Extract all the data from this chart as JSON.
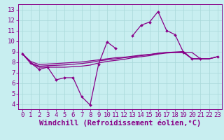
{
  "title": "",
  "xlabel": "Windchill (Refroidissement éolien,°C)",
  "ylabel": "",
  "background_color": "#c8eef0",
  "line_color": "#880088",
  "x": [
    0,
    1,
    2,
    3,
    4,
    5,
    6,
    7,
    8,
    9,
    10,
    11,
    12,
    13,
    14,
    15,
    16,
    17,
    18,
    19,
    20,
    21,
    22,
    23
  ],
  "line1": [
    8.8,
    7.9,
    7.3,
    7.5,
    6.3,
    6.5,
    6.5,
    4.7,
    3.9,
    7.8,
    9.9,
    9.3,
    null,
    10.5,
    11.5,
    11.8,
    12.8,
    11.0,
    10.6,
    8.9,
    8.3,
    8.3,
    null,
    8.5
  ],
  "line2_x": [
    0,
    1,
    2,
    3,
    4,
    5,
    6,
    7,
    8,
    9,
    10,
    11,
    12,
    13,
    14,
    15,
    16,
    17,
    18,
    19,
    20,
    21,
    22,
    23
  ],
  "line2": [
    8.8,
    7.9,
    7.5,
    7.5,
    7.5,
    7.5,
    7.55,
    7.6,
    7.7,
    7.9,
    8.05,
    8.15,
    8.25,
    8.4,
    8.5,
    8.6,
    8.75,
    8.85,
    8.9,
    8.9,
    8.9,
    8.3,
    8.3,
    8.5
  ],
  "line3": [
    8.8,
    7.9,
    7.6,
    7.65,
    7.68,
    7.72,
    7.78,
    7.85,
    7.95,
    8.1,
    8.2,
    8.3,
    8.4,
    8.5,
    8.6,
    8.7,
    8.82,
    8.9,
    8.95,
    9.0,
    8.3,
    8.3,
    8.3,
    8.5
  ],
  "line4": [
    8.8,
    8.05,
    7.75,
    7.8,
    7.85,
    7.9,
    7.95,
    8.0,
    8.1,
    8.2,
    8.3,
    8.4,
    8.45,
    8.55,
    8.65,
    8.72,
    8.82,
    8.9,
    8.9,
    8.9,
    8.3,
    8.3,
    8.3,
    8.5
  ],
  "ylim": [
    3.5,
    13.5
  ],
  "xlim": [
    -0.5,
    23.5
  ],
  "yticks": [
    4,
    5,
    6,
    7,
    8,
    9,
    10,
    11,
    12,
    13
  ],
  "xticks": [
    0,
    1,
    2,
    3,
    4,
    5,
    6,
    7,
    8,
    9,
    10,
    11,
    12,
    13,
    14,
    15,
    16,
    17,
    18,
    19,
    20,
    21,
    22,
    23
  ],
  "grid_color": "#a8d8d8",
  "font_size": 6.5,
  "xlabel_font_size": 7.5,
  "marker": "D",
  "marker_size": 2.0,
  "lw": 0.9
}
